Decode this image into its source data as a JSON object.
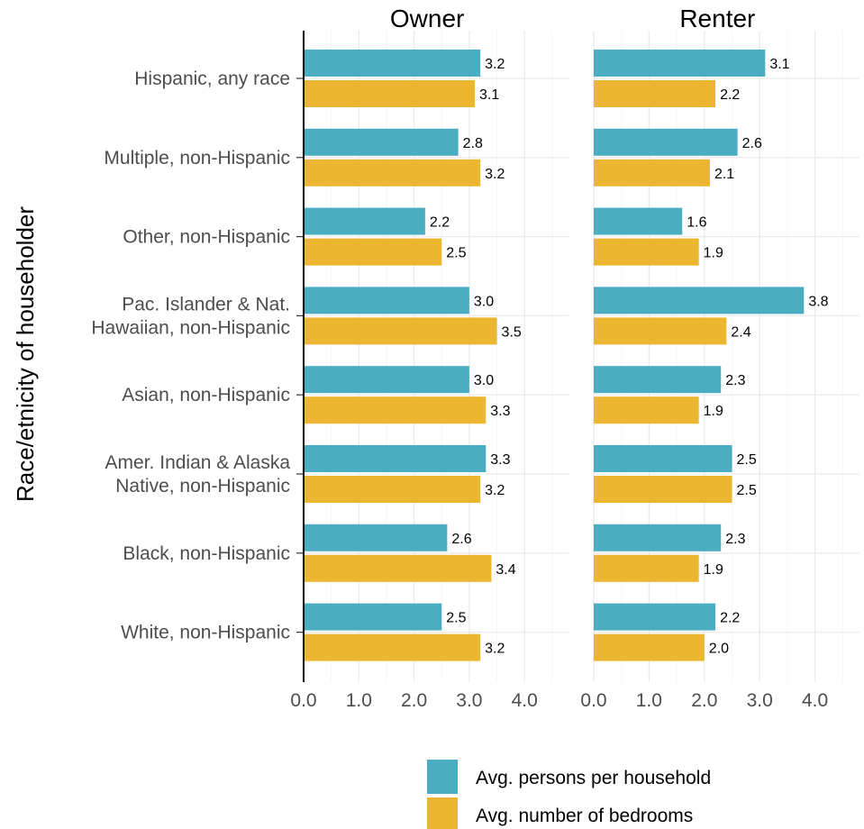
{
  "chart_data": {
    "type": "bar",
    "orientation": "horizontal",
    "ylabel": "Race/etnicity of householder",
    "categories": [
      [
        "Hispanic, any race"
      ],
      [
        "Multiple, non-Hispanic"
      ],
      [
        "Other, non-Hispanic"
      ],
      [
        "Pac. Islander & Nat.",
        "Hawaiian, non-Hispanic"
      ],
      [
        "Asian, non-Hispanic"
      ],
      [
        "Amer. Indian & Alaska",
        "Native, non-Hispanic"
      ],
      [
        "Black, non-Hispanic"
      ],
      [
        "White, non-Hispanic"
      ]
    ],
    "xlim": [
      0,
      4.8
    ],
    "xticks": [
      "0.0",
      "1.0",
      "2.0",
      "3.0",
      "4.0"
    ],
    "grid": true,
    "legend_position": "bottom-right",
    "series_colors": [
      "#4badc2",
      "#ecb630"
    ],
    "series_names": [
      "Avg. persons per household",
      "Avg. number of bedrooms"
    ],
    "facets": [
      {
        "title": "Owner",
        "series": [
          {
            "name": "Avg. persons per household",
            "values": [
              3.2,
              2.8,
              2.2,
              3.0,
              3.0,
              3.3,
              2.6,
              2.5
            ],
            "labels": [
              "3.2",
              "2.8",
              "2.2",
              "3.0",
              "3.0",
              "3.3",
              "2.6",
              "2.5"
            ]
          },
          {
            "name": "Avg. number of bedrooms",
            "values": [
              3.1,
              3.2,
              2.5,
              3.5,
              3.3,
              3.2,
              3.4,
              3.2
            ],
            "labels": [
              "3.1",
              "3.2",
              "2.5",
              "3.5",
              "3.3",
              "3.2",
              "3.4",
              "3.2"
            ]
          }
        ]
      },
      {
        "title": "Renter",
        "series": [
          {
            "name": "Avg. persons per household",
            "values": [
              3.1,
              2.6,
              1.6,
              3.8,
              2.3,
              2.5,
              2.3,
              2.2
            ],
            "labels": [
              "3.1",
              "2.6",
              "1.6",
              "3.8",
              "2.3",
              "2.5",
              "2.3",
              "2.2"
            ]
          },
          {
            "name": "Avg. number of bedrooms",
            "values": [
              2.2,
              2.1,
              1.9,
              2.4,
              1.9,
              2.5,
              1.9,
              2.0
            ],
            "labels": [
              "2.2",
              "2.1",
              "1.9",
              "2.4",
              "1.9",
              "2.5",
              "1.9",
              "2.0"
            ]
          }
        ]
      }
    ]
  }
}
